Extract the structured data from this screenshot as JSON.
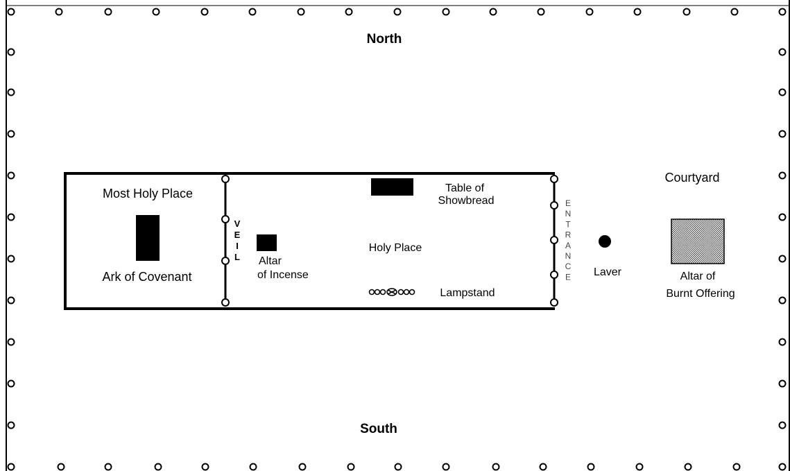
{
  "compass": {
    "north": "North",
    "south": "South"
  },
  "courtyard": {
    "label": "Courtyard"
  },
  "tabernacle": {
    "most_holy_place": "Most Holy Place",
    "ark": "Ark of Covenant",
    "veil": "VEIL",
    "altar_of_incense": [
      "Altar",
      "of Incense"
    ],
    "table_of_showbread": [
      "Table of",
      "Showbread"
    ],
    "holy_place": "Holy Place",
    "lampstand": "Lampstand",
    "entrance": "ENTRANCE"
  },
  "laver": "Laver",
  "altar_of_burnt_offering": [
    "Altar of",
    "Burnt Offering"
  ],
  "colors": {
    "ink": "#000000",
    "background": "#ffffff",
    "altar_hatch": "#888888"
  }
}
